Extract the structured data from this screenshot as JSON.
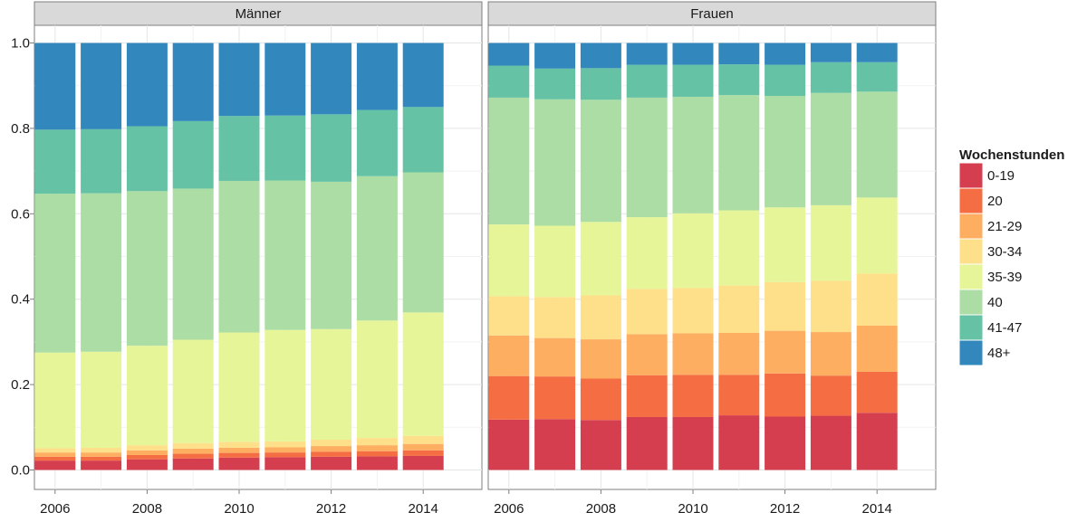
{
  "chart_data": {
    "type": "bar",
    "stacked": true,
    "ylim": [
      0,
      1
    ],
    "y_ticks": [
      0.0,
      0.2,
      0.4,
      0.6,
      0.8,
      1.0
    ],
    "y_tick_labels": [
      "0.0",
      "0.2",
      "0.4",
      "0.6",
      "0.8",
      "1.0"
    ],
    "x_tick_labels": [
      "2006",
      "2008",
      "2010",
      "2012",
      "2014"
    ],
    "x_tick_years": [
      2006,
      2008,
      2010,
      2012,
      2014
    ],
    "years": [
      2006,
      2007,
      2008,
      2009,
      2010,
      2011,
      2012,
      2013,
      2014
    ],
    "grid": true,
    "legend": {
      "title": "Wochenstunden",
      "placement": "right",
      "categories": [
        "0-19",
        "20",
        "21-29",
        "30-34",
        "35-39",
        "40",
        "41-47",
        "48+"
      ]
    },
    "colors": {
      "0-19": "#d53e4f",
      "20": "#f46d43",
      "21-29": "#fdae61",
      "30-34": "#fee08b",
      "35-39": "#e6f598",
      "40": "#abdda4",
      "41-47": "#66c2a5",
      "48+": "#3288bd"
    },
    "panels": [
      {
        "title": "Männer",
        "series": [
          {
            "name": "0-19",
            "values": [
              0.022,
              0.022,
              0.025,
              0.027,
              0.029,
              0.03,
              0.031,
              0.032,
              0.033
            ]
          },
          {
            "name": "20",
            "values": [
              0.009,
              0.009,
              0.01,
              0.011,
              0.011,
              0.011,
              0.012,
              0.012,
              0.013
            ]
          },
          {
            "name": "21-29",
            "values": [
              0.01,
              0.01,
              0.011,
              0.012,
              0.012,
              0.012,
              0.013,
              0.014,
              0.015
            ]
          },
          {
            "name": "30-34",
            "values": [
              0.01,
              0.011,
              0.012,
              0.013,
              0.014,
              0.014,
              0.015,
              0.017,
              0.019
            ]
          },
          {
            "name": "35-39",
            "values": [
              0.224,
              0.225,
              0.233,
              0.242,
              0.256,
              0.261,
              0.259,
              0.275,
              0.289
            ]
          },
          {
            "name": "40",
            "values": [
              0.372,
              0.371,
              0.362,
              0.354,
              0.355,
              0.35,
              0.345,
              0.338,
              0.328
            ]
          },
          {
            "name": "41-47",
            "values": [
              0.15,
              0.15,
              0.152,
              0.158,
              0.152,
              0.152,
              0.158,
              0.155,
              0.153
            ]
          },
          {
            "name": "48+",
            "values": [
              0.203,
              0.202,
              0.195,
              0.183,
              0.171,
              0.17,
              0.167,
              0.157,
              0.15
            ]
          }
        ]
      },
      {
        "title": "Frauen",
        "series": [
          {
            "name": "0-19",
            "values": [
              0.118,
              0.119,
              0.117,
              0.124,
              0.124,
              0.128,
              0.125,
              0.127,
              0.134
            ]
          },
          {
            "name": "20",
            "values": [
              0.102,
              0.1,
              0.097,
              0.098,
              0.099,
              0.095,
              0.101,
              0.094,
              0.096
            ]
          },
          {
            "name": "21-29",
            "values": [
              0.095,
              0.09,
              0.092,
              0.096,
              0.097,
              0.098,
              0.1,
              0.102,
              0.108
            ]
          },
          {
            "name": "30-34",
            "values": [
              0.092,
              0.096,
              0.103,
              0.106,
              0.106,
              0.111,
              0.114,
              0.12,
              0.122
            ]
          },
          {
            "name": "35-39",
            "values": [
              0.168,
              0.167,
              0.172,
              0.168,
              0.175,
              0.176,
              0.175,
              0.177,
              0.178
            ]
          },
          {
            "name": "40",
            "values": [
              0.297,
              0.296,
              0.286,
              0.28,
              0.273,
              0.27,
              0.261,
              0.263,
              0.248
            ]
          },
          {
            "name": "41-47",
            "values": [
              0.075,
              0.072,
              0.074,
              0.077,
              0.075,
              0.072,
              0.073,
              0.072,
              0.069
            ]
          },
          {
            "name": "48+",
            "values": [
              0.053,
              0.06,
              0.059,
              0.051,
              0.051,
              0.05,
              0.051,
              0.045,
              0.045
            ]
          }
        ]
      }
    ]
  }
}
